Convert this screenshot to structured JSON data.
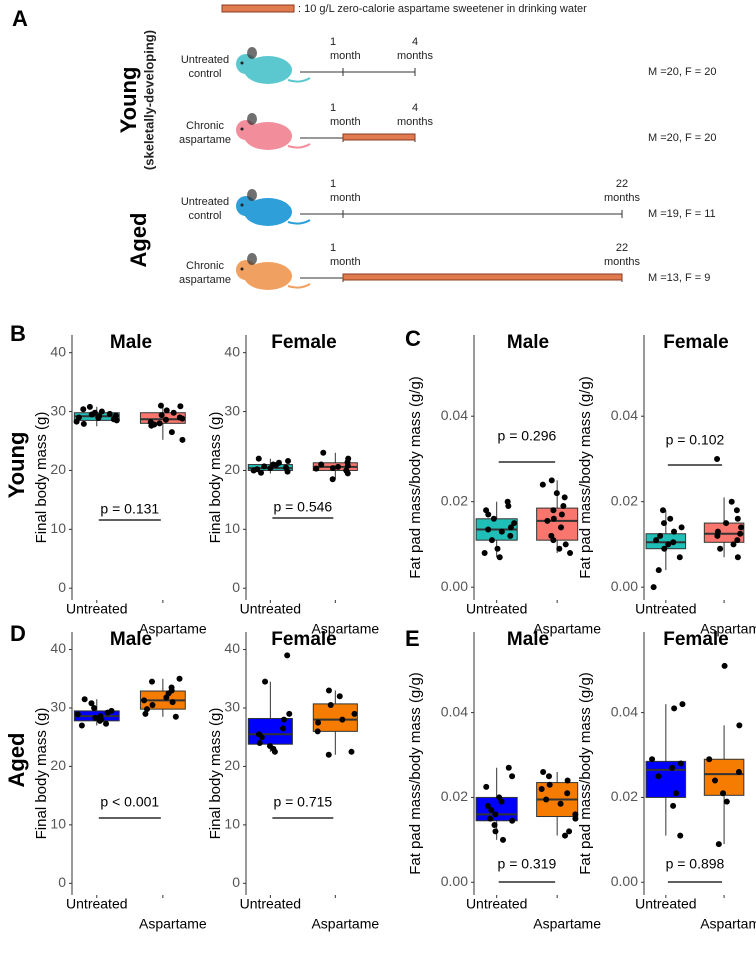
{
  "schematic": {
    "panel": "A",
    "legend": ": 10 g/L zero-calorie aspartame sweetener in drinking water",
    "start_label": [
      "1",
      "month"
    ],
    "groups": [
      {
        "label": "Young",
        "sublabel": "(skeletally-developing)",
        "end_label": [
          "4",
          "months"
        ],
        "rows": [
          {
            "label": [
              "Untreated",
              "control"
            ],
            "counts": "M =20, F = 20"
          },
          {
            "label": [
              "Chronic",
              "aspartame"
            ],
            "counts": "M =20, F = 20"
          }
        ]
      },
      {
        "label": "Aged",
        "end_label": [
          "22",
          "months"
        ],
        "rows": [
          {
            "label": [
              "Untreated",
              "control"
            ],
            "counts": "M =19, F = 11"
          },
          {
            "label": [
              "Chronic",
              "aspartame"
            ],
            "counts": "M =13, F = 9"
          }
        ]
      }
    ]
  },
  "chart_data": [
    {
      "type": "box",
      "panel": "B",
      "row_label": "Young",
      "title": "Male",
      "ylabel": "Final body mass (g)",
      "categories": [
        "Untreated",
        "Aspartame"
      ],
      "ylim": [
        -2,
        43
      ],
      "yticks": [
        0,
        10,
        20,
        30,
        40
      ],
      "p_label": "p = 0.131",
      "series": [
        {
          "color": "#1fbfb8",
          "stats": {
            "min": 27.5,
            "q1": 28.5,
            "median": 29.2,
            "q3": 29.8,
            "max": 30.8
          },
          "points": [
            28.3,
            28.7,
            29,
            29.2,
            29.5,
            29.8,
            30,
            30.4,
            30.8,
            28.9,
            29.3,
            29.6,
            27.9,
            28.5
          ]
        },
        {
          "color": "#f8766d",
          "stats": {
            "min": 25.2,
            "q1": 28,
            "median": 28.7,
            "q3": 29.8,
            "max": 31
          },
          "points": [
            25.2,
            26.5,
            27.8,
            28,
            28.2,
            28.6,
            28.8,
            29,
            29.4,
            29.8,
            30.2,
            30.9,
            31,
            27.6
          ]
        }
      ]
    },
    {
      "type": "box",
      "title": "Female",
      "ylabel": "Final body mass (g)",
      "categories": [
        "Untreated",
        "Aspartame"
      ],
      "ylim": [
        -2,
        43
      ],
      "yticks": [
        0,
        10,
        20,
        30,
        40
      ],
      "p_label": "p = 0.546",
      "series": [
        {
          "color": "#1fbfb8",
          "stats": {
            "min": 19.5,
            "q1": 20,
            "median": 20.4,
            "q3": 21,
            "max": 22
          },
          "points": [
            19.6,
            19.8,
            20,
            20.2,
            20.4,
            20.5,
            20.7,
            21,
            21.3,
            21.6,
            22,
            20.9
          ]
        },
        {
          "color": "#f8766d",
          "stats": {
            "min": 18.5,
            "q1": 20,
            "median": 20.6,
            "q3": 21.3,
            "max": 23
          },
          "points": [
            18.5,
            19.5,
            20,
            20.3,
            20.6,
            20.8,
            21,
            21.4,
            22,
            23,
            20.4
          ]
        }
      ]
    },
    {
      "type": "box",
      "panel": "C",
      "title": "Male",
      "ylabel": "Fat pad mass/body mass (g/g)",
      "categories": [
        "Untreated",
        "Aspartame"
      ],
      "ylim": [
        -0.003,
        0.059
      ],
      "yticks": [
        {
          "value": 0,
          "label": "0.00"
        },
        {
          "value": 0.02,
          "label": "0.02"
        },
        {
          "value": 0.04,
          "label": "0.04"
        }
      ],
      "p_label": "p = 0.296",
      "series": [
        {
          "color": "#1fbfb8",
          "stats": {
            "min": 0.007,
            "q1": 0.011,
            "median": 0.0135,
            "q3": 0.016,
            "max": 0.02
          },
          "points": [
            0.007,
            0.008,
            0.009,
            0.011,
            0.012,
            0.013,
            0.0135,
            0.014,
            0.015,
            0.016,
            0.017,
            0.018,
            0.019,
            0.02
          ]
        },
        {
          "color": "#f8766d",
          "stats": {
            "min": 0.008,
            "q1": 0.011,
            "median": 0.0155,
            "q3": 0.0185,
            "max": 0.025
          },
          "points": [
            0.008,
            0.009,
            0.01,
            0.011,
            0.012,
            0.014,
            0.0155,
            0.016,
            0.017,
            0.018,
            0.019,
            0.021,
            0.022,
            0.024,
            0.025
          ]
        }
      ]
    },
    {
      "type": "box",
      "title": "Female",
      "ylabel": "Fat pad mass/body mass (g/g)",
      "categories": [
        "Untreated",
        "Aspartame"
      ],
      "ylim": [
        -0.003,
        0.059
      ],
      "yticks": [
        {
          "value": 0,
          "label": "0.00"
        },
        {
          "value": 0.02,
          "label": "0.02"
        },
        {
          "value": 0.04,
          "label": "0.04"
        }
      ],
      "p_label": "p = 0.102",
      "series": [
        {
          "color": "#1fbfb8",
          "stats": {
            "min": 0.004,
            "q1": 0.009,
            "median": 0.0105,
            "q3": 0.0125,
            "max": 0.018
          },
          "points": [
            0,
            0.004,
            0.007,
            0.009,
            0.01,
            0.0105,
            0.011,
            0.012,
            0.013,
            0.014,
            0.015,
            0.016,
            0.018
          ]
        },
        {
          "color": "#f8766d",
          "stats": {
            "min": 0.007,
            "q1": 0.0105,
            "median": 0.0125,
            "q3": 0.015,
            "max": 0.021
          },
          "points": [
            0.007,
            0.009,
            0.01,
            0.011,
            0.012,
            0.0125,
            0.013,
            0.014,
            0.015,
            0.016,
            0.018,
            0.02,
            0.03
          ]
        }
      ]
    },
    {
      "type": "box",
      "panel": "D",
      "row_label": "Aged",
      "title": "Male",
      "ylabel": "Final body mass (g)",
      "categories": [
        "Untreated",
        "Aspartame"
      ],
      "ylim": [
        -2,
        43
      ],
      "yticks": [
        0,
        10,
        20,
        30,
        40
      ],
      "p_label": "p < 0.001",
      "series": [
        {
          "color": "#0000ff",
          "stats": {
            "min": 27,
            "q1": 27.8,
            "median": 28.6,
            "q3": 29.5,
            "max": 31.5
          },
          "points": [
            27,
            27.3,
            27.8,
            28,
            28.3,
            28.6,
            28.9,
            29.2,
            29.5,
            30,
            30.8,
            31.5
          ]
        },
        {
          "color": "#f57c00",
          "stats": {
            "min": 28.5,
            "q1": 29.8,
            "median": 31.3,
            "q3": 32.9,
            "max": 35
          },
          "points": [
            28.5,
            29,
            29.8,
            30.5,
            31,
            31.3,
            31.8,
            32.5,
            33,
            33.5,
            34.5,
            35
          ]
        }
      ]
    },
    {
      "type": "box",
      "title": "Female",
      "ylabel": "Final body mass (g)",
      "categories": [
        "Untreated",
        "Aspartame"
      ],
      "ylim": [
        -2,
        43
      ],
      "yticks": [
        0,
        10,
        20,
        30,
        40
      ],
      "p_label": "p = 0.715",
      "series": [
        {
          "color": "#0000ff",
          "stats": {
            "min": 22.5,
            "q1": 23.8,
            "median": 25.5,
            "q3": 28.2,
            "max": 34.5
          },
          "points": [
            22.5,
            23,
            23.5,
            24,
            25,
            25.5,
            26.5,
            28,
            29,
            34.5,
            39
          ]
        },
        {
          "color": "#f57c00",
          "stats": {
            "min": 22,
            "q1": 26,
            "median": 28,
            "q3": 30.7,
            "max": 33
          },
          "points": [
            22,
            22.5,
            26,
            27.5,
            28,
            29,
            30.5,
            32,
            33
          ]
        }
      ]
    },
    {
      "type": "box",
      "panel": "E",
      "title": "Male",
      "ylabel": "Fat pad mass/body mass (g/g)",
      "categories": [
        "Untreated",
        "Aspartame"
      ],
      "ylim": [
        -0.003,
        0.059
      ],
      "yticks": [
        {
          "value": 0,
          "label": "0.00"
        },
        {
          "value": 0.02,
          "label": "0.02"
        },
        {
          "value": 0.04,
          "label": "0.04"
        }
      ],
      "p_label": "p = 0.319",
      "series": [
        {
          "color": "#0000ff",
          "stats": {
            "min": 0.01,
            "q1": 0.0145,
            "median": 0.016,
            "q3": 0.02,
            "max": 0.027
          },
          "points": [
            0.01,
            0.012,
            0.0135,
            0.0145,
            0.015,
            0.016,
            0.017,
            0.018,
            0.019,
            0.02,
            0.0225,
            0.025,
            0.027
          ]
        },
        {
          "color": "#f57c00",
          "stats": {
            "min": 0.011,
            "q1": 0.0155,
            "median": 0.0195,
            "q3": 0.0235,
            "max": 0.026
          },
          "points": [
            0.011,
            0.012,
            0.015,
            0.016,
            0.0185,
            0.0195,
            0.021,
            0.022,
            0.023,
            0.024,
            0.025,
            0.026
          ]
        }
      ]
    },
    {
      "type": "box",
      "title": "Female",
      "ylabel": "Fat pad mass/body mass (g/g)",
      "categories": [
        "Untreated",
        "Aspartame"
      ],
      "ylim": [
        -0.003,
        0.059
      ],
      "yticks": [
        {
          "value": 0,
          "label": "0.00"
        },
        {
          "value": 0.02,
          "label": "0.02"
        },
        {
          "value": 0.04,
          "label": "0.04"
        }
      ],
      "p_label": "p = 0.898",
      "series": [
        {
          "color": "#0000ff",
          "stats": {
            "min": 0.011,
            "q1": 0.02,
            "median": 0.0265,
            "q3": 0.0285,
            "max": 0.042
          },
          "points": [
            0.011,
            0.018,
            0.021,
            0.025,
            0.027,
            0.028,
            0.029,
            0.041,
            0.042
          ]
        },
        {
          "color": "#f57c00",
          "stats": {
            "min": 0.009,
            "q1": 0.0205,
            "median": 0.0255,
            "q3": 0.029,
            "max": 0.037
          },
          "points": [
            0.009,
            0.019,
            0.021,
            0.024,
            0.026,
            0.029,
            0.037,
            0.051
          ]
        }
      ]
    }
  ]
}
